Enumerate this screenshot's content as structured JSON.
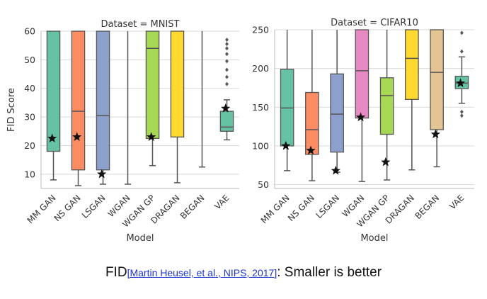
{
  "chart_data": [
    {
      "type": "box",
      "title": "Dataset = MNIST",
      "xlabel": "Model",
      "ylabel": "FID Score",
      "ylim": [
        5,
        60
      ],
      "yticks": [
        10,
        20,
        30,
        40,
        50,
        60
      ],
      "grid": true,
      "categories": [
        "MM GAN",
        "NS GAN",
        "LSGAN",
        "WGAN",
        "WGAN GP",
        "DRAGAN",
        "BEGAN",
        "VAE"
      ],
      "colors": [
        "#66c2a5",
        "#fc8d62",
        "#8da0cb",
        "#e78ac3",
        "#a6d854",
        "#ffd92f",
        "#e5c494",
        "#66c2a5"
      ],
      "boxes": [
        {
          "whisker_low": 8,
          "q1": 18,
          "median": 60,
          "q3": 60,
          "whisker_high": 60,
          "star": 22.5,
          "outliers": []
        },
        {
          "whisker_low": 6,
          "q1": 11.5,
          "median": 32,
          "q3": 60,
          "whisker_high": 60,
          "star": 23,
          "outliers": []
        },
        {
          "whisker_low": 6.5,
          "q1": 11.5,
          "median": 30.5,
          "q3": 60,
          "whisker_high": 60,
          "star": 10,
          "outliers": []
        },
        {
          "whisker_low": 6.5,
          "q1": 60,
          "median": 60,
          "q3": 60,
          "whisker_high": 60,
          "star": null,
          "outliers": []
        },
        {
          "whisker_low": 13,
          "q1": 22.5,
          "median": 54,
          "q3": 60,
          "whisker_high": 60,
          "star": 23,
          "outliers": []
        },
        {
          "whisker_low": 7,
          "q1": 23,
          "median": 60,
          "q3": 60,
          "whisker_high": 60,
          "star": null,
          "outliers": []
        },
        {
          "whisker_low": 12.5,
          "q1": 60,
          "median": 60,
          "q3": 60,
          "whisker_high": 60,
          "star": null,
          "outliers": []
        },
        {
          "whisker_low": 22,
          "q1": 25,
          "median": 26.5,
          "q3": 32,
          "whisker_high": 36,
          "star": 33,
          "outliers": [
            41.5,
            44,
            46.5,
            49.5,
            52,
            54,
            55.5,
            57
          ]
        }
      ]
    },
    {
      "type": "box",
      "title": "Dataset = CIFAR10",
      "xlabel": "Model",
      "ylabel": "",
      "ylim": [
        45,
        250
      ],
      "yticks": [
        50,
        100,
        150,
        200,
        250
      ],
      "grid": true,
      "categories": [
        "MM GAN",
        "NS GAN",
        "LSGAN",
        "WGAN",
        "WGAN GP",
        "DRAGAN",
        "BEGAN",
        "VAE"
      ],
      "colors": [
        "#66c2a5",
        "#fc8d62",
        "#8da0cb",
        "#e78ac3",
        "#a6d854",
        "#ffd92f",
        "#e5c494",
        "#66c2a5"
      ],
      "boxes": [
        {
          "whisker_low": 68,
          "q1": 100,
          "median": 149,
          "q3": 199,
          "whisker_high": 250,
          "star": 100,
          "outliers": []
        },
        {
          "whisker_low": 55,
          "q1": 89,
          "median": 121,
          "q3": 169,
          "whisker_high": 250,
          "star": 94,
          "outliers": []
        },
        {
          "whisker_low": 66,
          "q1": 92,
          "median": 141,
          "q3": 193,
          "whisker_high": 250,
          "star": 68,
          "outliers": []
        },
        {
          "whisker_low": 54,
          "q1": 136,
          "median": 197,
          "q3": 250,
          "whisker_high": 250,
          "star": 137,
          "outliers": []
        },
        {
          "whisker_low": 56,
          "q1": 115,
          "median": 165,
          "q3": 188,
          "whisker_high": 250,
          "star": 79,
          "outliers": []
        },
        {
          "whisker_low": 69,
          "q1": 160,
          "median": 213,
          "q3": 250,
          "whisker_high": 250,
          "star": null,
          "outliers": []
        },
        {
          "whisker_low": 73,
          "q1": 121,
          "median": 195,
          "q3": 250,
          "whisker_high": 250,
          "star": 115,
          "outliers": []
        },
        {
          "whisker_low": 155,
          "q1": 174,
          "median": 181,
          "q3": 190,
          "whisker_high": 215,
          "star": 181,
          "outliers": [
            139,
            144,
            222,
            246
          ]
        }
      ]
    }
  ],
  "caption": {
    "lead": "FID",
    "reference": "[Martin Heusel, et al., NIPS, 2017]",
    "rest": ": Smaller is better"
  }
}
